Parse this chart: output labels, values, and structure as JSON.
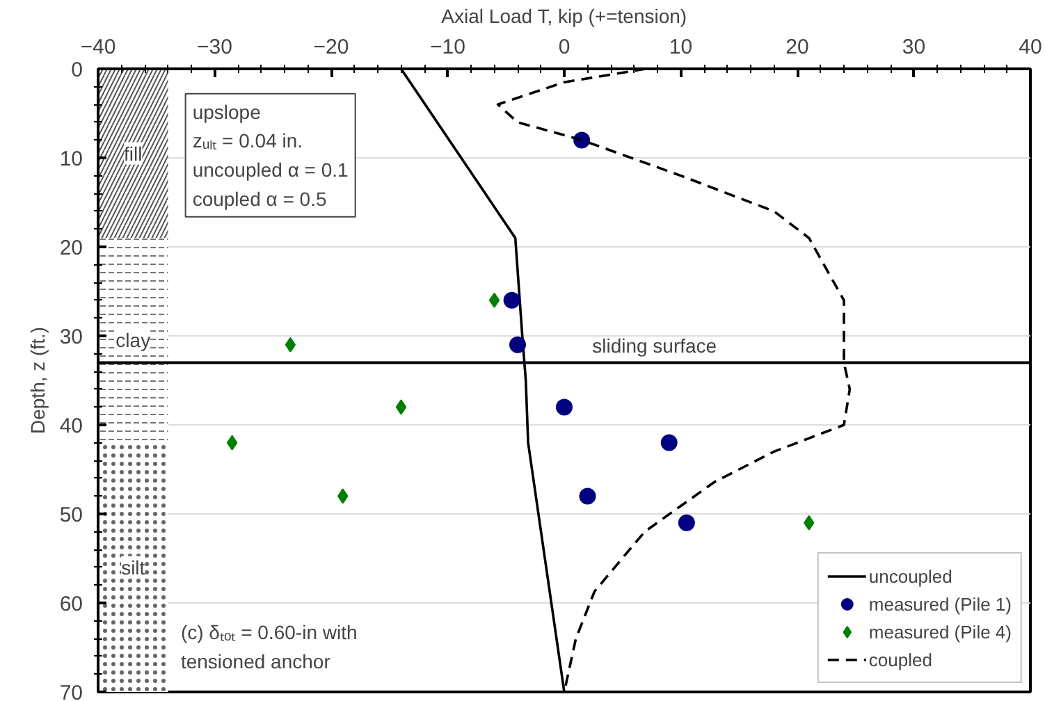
{
  "chart_data": {
    "type": "line",
    "xlabel": "Axial Load T, kip (+=tension)",
    "ylabel": "Depth, z (ft.)",
    "xlim": [
      -40,
      40
    ],
    "xticks": [
      -40,
      -30,
      -20,
      -10,
      0,
      10,
      20,
      30,
      40
    ],
    "ylim": [
      70,
      0
    ],
    "yticks": [
      0,
      10,
      20,
      30,
      40,
      50,
      60,
      70
    ],
    "grid": "y",
    "legend": "bottom right",
    "series": [
      {
        "name": "uncoupled",
        "line_style": "solid",
        "color": "#000000",
        "x": [
          -14,
          -4.2,
          -3.6,
          -3.3,
          -3.1,
          0
        ],
        "values": [
          0,
          19,
          30,
          35,
          42,
          70
        ]
      },
      {
        "name": "measured (Pile 1)",
        "type": "scatter",
        "marker": "circle",
        "color": "#000080",
        "x": [
          1.5,
          -4.5,
          -4,
          0,
          9,
          2,
          10.5
        ],
        "values": [
          8,
          26,
          31,
          38,
          42,
          48,
          51
        ]
      },
      {
        "name": "measured (Pile 4)",
        "type": "scatter",
        "marker": "diamond",
        "color": "#008000",
        "x": [
          -6,
          -23.5,
          -14,
          -28.5,
          -19,
          21
        ],
        "values": [
          26,
          31,
          38,
          42,
          48,
          51
        ]
      },
      {
        "name": "coupled",
        "line_style": "dashed",
        "color": "#000000",
        "x": [
          7,
          0,
          -5.7,
          -4,
          1.5,
          10,
          18,
          21,
          24,
          24,
          24.5,
          24,
          18,
          12.9,
          6.9,
          2.6,
          1,
          0
        ],
        "values": [
          0,
          1.5,
          4,
          6,
          8,
          12,
          16,
          19,
          26,
          33,
          36,
          40,
          43,
          46.4,
          52,
          58.7,
          64,
          70
        ]
      }
    ],
    "ref_lines": [
      {
        "axis": "y",
        "value": 33,
        "label": "sliding surface",
        "color": "#000000"
      }
    ],
    "bands": [
      {
        "axis": "y",
        "from": 0,
        "to": 19,
        "label": "fill",
        "color": "#555555"
      },
      {
        "axis": "y",
        "from": 19,
        "to": 42,
        "label": "clay",
        "color": "#777777"
      },
      {
        "axis": "y",
        "from": 42,
        "to": 70,
        "label": "silt",
        "color": "#666666"
      }
    ],
    "annotations": [
      "upslope\nzᵤₗₜ = 0.04 in.\nuncoupled α = 0.1\ncoupled α = 0.5",
      "(c) δₜₒₜ = 0.60-in with\ntensioned anchor"
    ]
  }
}
